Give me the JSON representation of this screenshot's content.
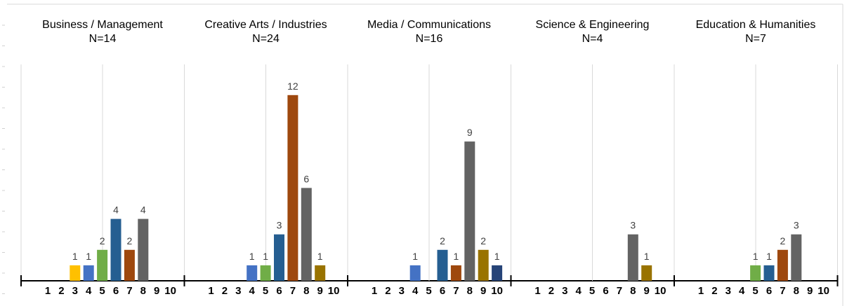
{
  "chart_data": {
    "type": "bar",
    "x_ticks": [
      "1",
      "2",
      "3",
      "4",
      "5",
      "6",
      "7",
      "8",
      "9",
      "10"
    ],
    "ylim": [
      0,
      13
    ],
    "grid": false,
    "colors": [
      "#4472C4",
      "#ED7D31",
      "#FFC000",
      "#4472C4",
      "#70AD47",
      "#255E91",
      "#9E480E",
      "#636363",
      "#997300",
      "#264478"
    ],
    "panels": [
      {
        "title": "Business / Management",
        "n_label": "N=14",
        "values": [
          0,
          0,
          1,
          1,
          2,
          4,
          2,
          4,
          0,
          0
        ]
      },
      {
        "title": "Creative Arts / Industries",
        "n_label": "N=24",
        "values": [
          0,
          0,
          0,
          1,
          1,
          3,
          12,
          6,
          1,
          0
        ]
      },
      {
        "title": "Media / Communications",
        "n_label": "N=16",
        "values": [
          0,
          0,
          0,
          1,
          0,
          2,
          1,
          9,
          2,
          1
        ]
      },
      {
        "title": "Science & Engineering",
        "n_label": "N=4",
        "values": [
          0,
          0,
          0,
          0,
          0,
          0,
          0,
          3,
          1,
          0
        ]
      },
      {
        "title": "Education & Humanities",
        "n_label": "N=7",
        "values": [
          0,
          0,
          0,
          0,
          1,
          1,
          2,
          3,
          0,
          0
        ]
      }
    ]
  }
}
